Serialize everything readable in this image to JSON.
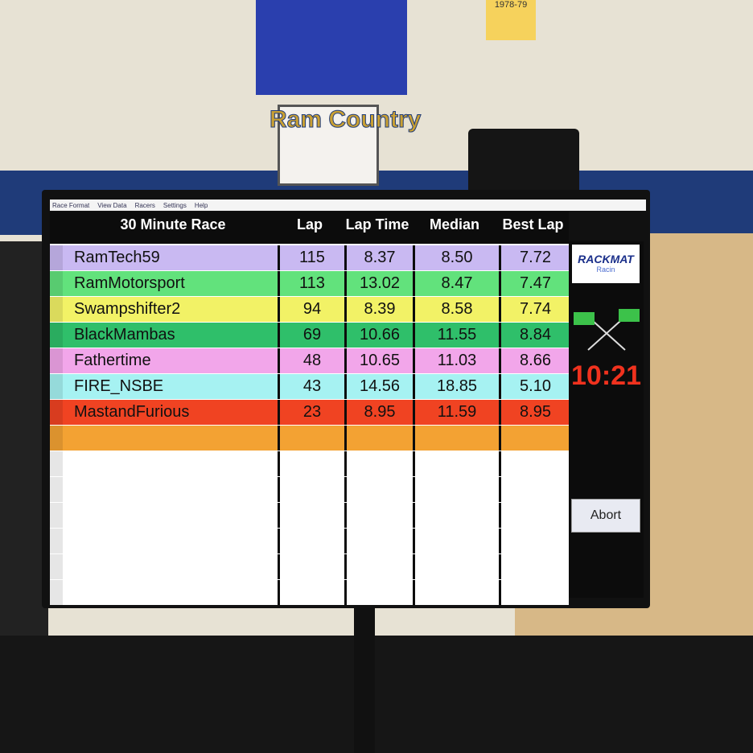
{
  "wall": {
    "slogan": "Ram Country",
    "banner": "1978-79"
  },
  "menu": [
    "Race Format",
    "View Data",
    "Racers",
    "Settings",
    "Help"
  ],
  "table": {
    "title": "30 Minute Race",
    "headers": [
      "Lap",
      "Lap Time",
      "Median",
      "Best Lap"
    ],
    "rows": [
      {
        "color": "#c9b9f2",
        "cells": [
          "RamTech59",
          "115",
          "8.37",
          "8.50",
          "7.72"
        ]
      },
      {
        "color": "#62e27c",
        "cells": [
          "RamMotorsport",
          "113",
          "13.02",
          "8.47",
          "7.47"
        ]
      },
      {
        "color": "#f2f266",
        "cells": [
          "Swampshifter2",
          "94",
          "8.39",
          "8.58",
          "7.74"
        ]
      },
      {
        "color": "#2fbf6a",
        "cells": [
          "BlackMambas",
          "69",
          "10.66",
          "11.55",
          "8.84"
        ]
      },
      {
        "color": "#f2a6ea",
        "cells": [
          "Fathertime",
          "48",
          "10.65",
          "11.03",
          "8.66"
        ]
      },
      {
        "color": "#a6f2f2",
        "cells": [
          "FIRE_NSBE",
          "43",
          "14.56",
          "18.85",
          "5.10"
        ]
      },
      {
        "color": "#f04322",
        "cells": [
          "MastandFurious",
          "23",
          "8.95",
          "11.59",
          "8.95"
        ]
      }
    ]
  },
  "logo": {
    "name": "RACKMAT",
    "sub": "Racin"
  },
  "timer": "10:21",
  "button": "Abort"
}
